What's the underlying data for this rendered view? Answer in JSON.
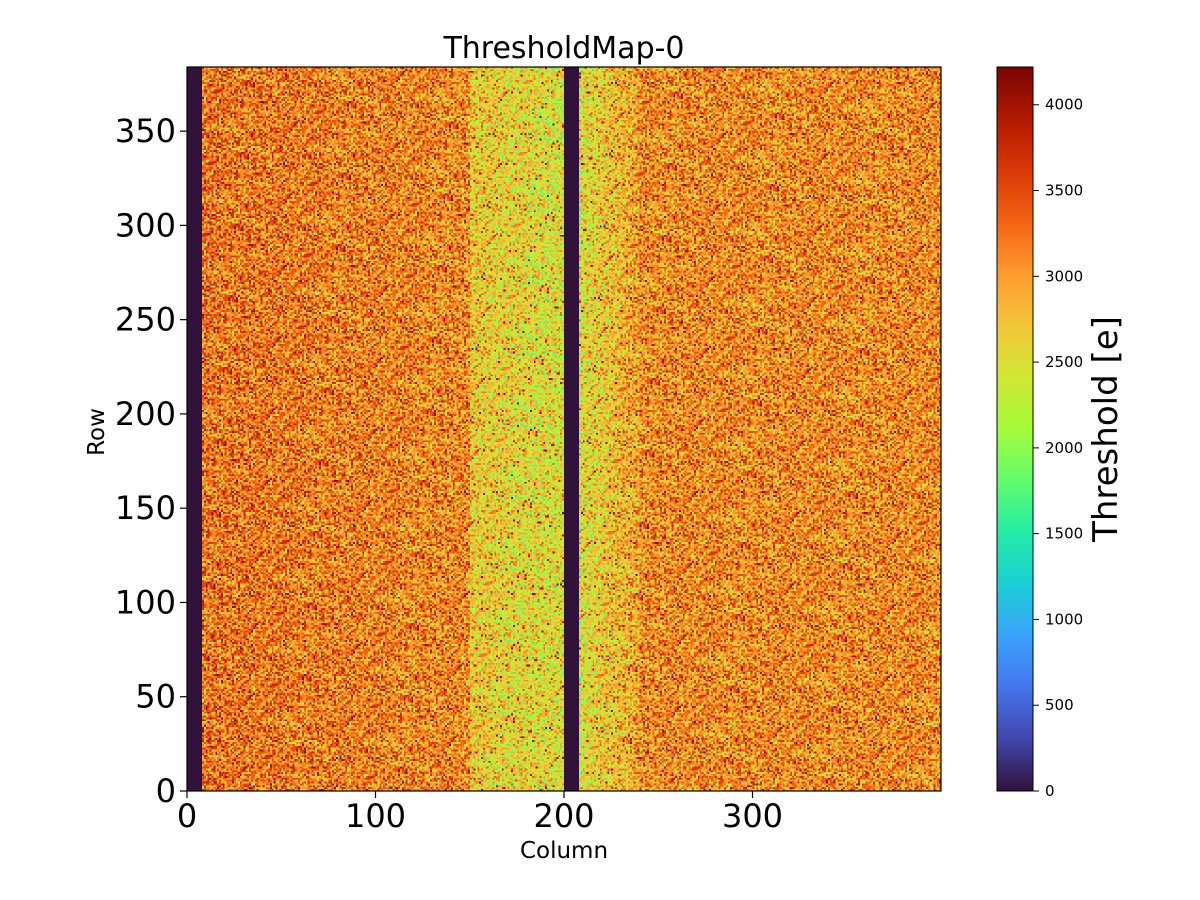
{
  "chart_data": {
    "type": "heatmap",
    "title": "ThresholdMap-0",
    "xlabel": "Column",
    "ylabel": "Row",
    "xlim": [
      0,
      400
    ],
    "ylim": [
      0,
      384
    ],
    "x_ticks": [
      0,
      100,
      200,
      300
    ],
    "y_ticks": [
      0,
      50,
      100,
      150,
      200,
      250,
      300,
      350
    ],
    "grid": false,
    "colorbar": {
      "label": "Threshold [e]",
      "range": [
        0,
        4220
      ],
      "ticks": [
        0,
        500,
        1000,
        1500,
        2000,
        2500,
        3000,
        3500,
        4000
      ],
      "colormap": "turbo",
      "colors": [
        "#30123b",
        "#4145ab",
        "#4675ed",
        "#39a2fc",
        "#1bcfd4",
        "#24eca6",
        "#61fc6c",
        "#a4fc3b",
        "#d1e834",
        "#f3c63a",
        "#fe9b2d",
        "#f36315",
        "#d93806",
        "#b11901",
        "#7a0402"
      ]
    },
    "dead_column_bands": [
      {
        "columns": [
          0,
          8
        ],
        "value": 0
      },
      {
        "columns": [
          200,
          208
        ],
        "value": 0
      }
    ],
    "typical_values": {
      "outer_region_threshold": 3100,
      "middle_region_threshold": 2700,
      "near_dead_band_threshold": 2500
    }
  }
}
